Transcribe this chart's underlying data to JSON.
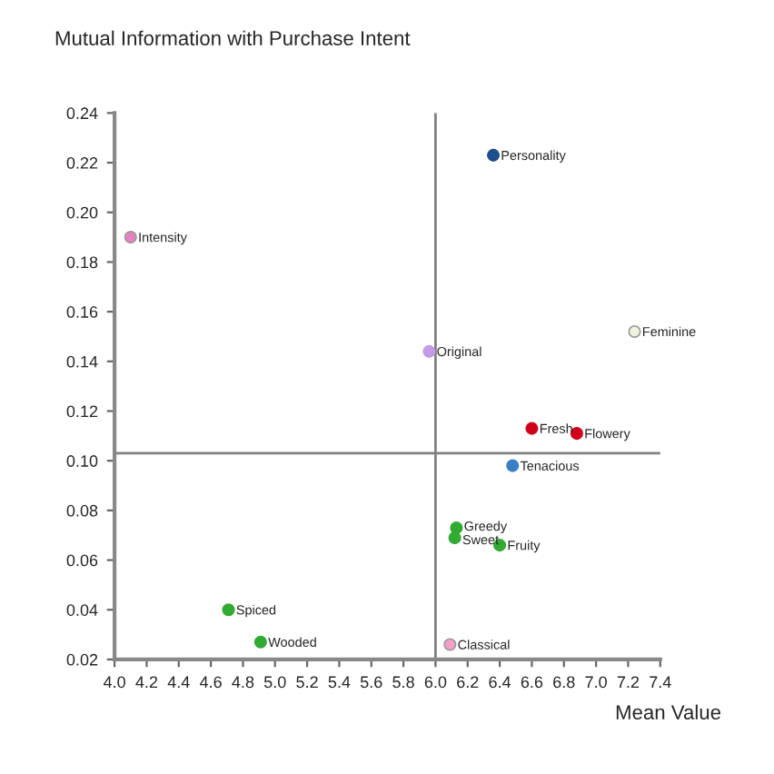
{
  "chart_data": {
    "type": "scatter",
    "title": "Mutual Information with Purchase Intent",
    "xlabel": "Mean Value",
    "xlim": [
      4.0,
      7.4
    ],
    "xticks": [
      {
        "value": 4.0,
        "label": "4.0"
      },
      4.2,
      4.4,
      4.6,
      4.8,
      {
        "value": 5.0,
        "label": "5.0"
      },
      5.2,
      5.4,
      5.6,
      5.8,
      {
        "value": 6.0,
        "label": "6.0"
      },
      6.2,
      6.4,
      6.6,
      6.8,
      {
        "value": 7.0,
        "label": "7.0"
      },
      7.2,
      7.4
    ],
    "ylim": [
      0.02,
      0.24
    ],
    "yticks": [
      0.02,
      0.04,
      0.06,
      0.08,
      {
        "value": 0.1,
        "label": "0.10"
      },
      0.12,
      0.14,
      0.16,
      0.18,
      {
        "value": 0.2,
        "label": "0.20"
      },
      0.22,
      0.24
    ],
    "grid": false,
    "legend": false,
    "marker": "circle",
    "ref_lines": [
      {
        "axis": "x",
        "value": 6.0,
        "color": "#808080"
      },
      {
        "axis": "y",
        "value": 0.103,
        "color": "#808080"
      }
    ],
    "series": [
      {
        "name": "Personality",
        "color": "#1f4e8c",
        "x": [
          6.36
        ],
        "values": [
          0.223
        ]
      },
      {
        "name": "Intensity",
        "color": "#e87fc0",
        "x": [
          4.1
        ],
        "values": [
          0.19
        ]
      },
      {
        "name": "Feminine",
        "color": "#f0f0dc",
        "x": [
          7.24
        ],
        "values": [
          0.152
        ]
      },
      {
        "name": "Original",
        "color": "#c39be6",
        "x": [
          5.96
        ],
        "values": [
          0.144
        ]
      },
      {
        "name": "Fresh",
        "color": "#d0021b",
        "x": [
          6.6
        ],
        "values": [
          0.113
        ]
      },
      {
        "name": "Flowery",
        "color": "#d0021b",
        "x": [
          6.88
        ],
        "values": [
          0.111
        ]
      },
      {
        "name": "Tenacious",
        "color": "#3a7fc4",
        "x": [
          6.48
        ],
        "values": [
          0.098
        ]
      },
      {
        "name": "Greedy",
        "color": "#33aa33",
        "x": [
          6.13
        ],
        "values": [
          0.073
        ]
      },
      {
        "name": "Sweet",
        "color": "#33aa33",
        "x": [
          6.12
        ],
        "values": [
          0.069
        ]
      },
      {
        "name": "Fruity",
        "color": "#33aa33",
        "x": [
          6.4
        ],
        "values": [
          0.066
        ]
      },
      {
        "name": "Spiced",
        "color": "#33aa33",
        "x": [
          4.71
        ],
        "values": [
          0.04
        ]
      },
      {
        "name": "Wooded",
        "color": "#33aa33",
        "x": [
          4.91
        ],
        "values": [
          0.027
        ]
      },
      {
        "name": "Classical",
        "color": "#f4a0c8",
        "x": [
          6.09
        ],
        "values": [
          0.026
        ]
      }
    ]
  }
}
